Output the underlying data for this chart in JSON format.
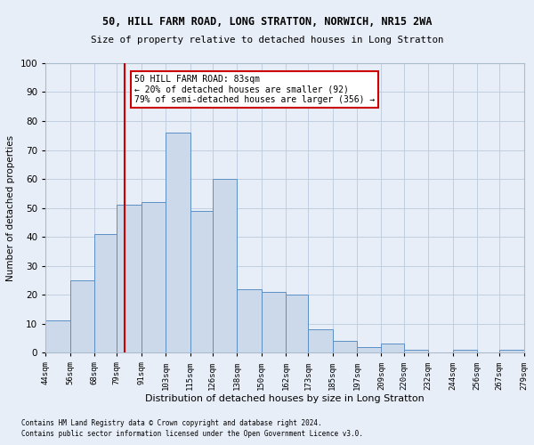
{
  "title_line1": "50, HILL FARM ROAD, LONG STRATTON, NORWICH, NR15 2WA",
  "title_line2": "Size of property relative to detached houses in Long Stratton",
  "xlabel": "Distribution of detached houses by size in Long Stratton",
  "ylabel": "Number of detached properties",
  "bar_color": "#ccd9ea",
  "bar_edge_color": "#5b8fc4",
  "grid_color": "#c0cfe0",
  "annotation_text": "50 HILL FARM ROAD: 83sqm\n← 20% of detached houses are smaller (92)\n79% of semi-detached houses are larger (356) →",
  "annotation_box_color": "#ffffff",
  "annotation_edge_color": "#cc0000",
  "vline_color": "#cc0000",
  "vline_x": 83,
  "bins": [
    44,
    56,
    68,
    79,
    91,
    103,
    115,
    126,
    138,
    150,
    162,
    173,
    185,
    197,
    209,
    220,
    232,
    244,
    256,
    267,
    279
  ],
  "bar_heights": [
    11,
    25,
    41,
    51,
    52,
    76,
    49,
    60,
    22,
    21,
    20,
    8,
    4,
    2,
    3,
    1,
    0,
    1,
    0,
    1
  ],
  "tick_labels": [
    "44sqm",
    "56sqm",
    "68sqm",
    "79sqm",
    "91sqm",
    "103sqm",
    "115sqm",
    "126sqm",
    "138sqm",
    "150sqm",
    "162sqm",
    "173sqm",
    "185sqm",
    "197sqm",
    "209sqm",
    "220sqm",
    "232sqm",
    "244sqm",
    "256sqm",
    "267sqm",
    "279sqm"
  ],
  "ylim": [
    0,
    100
  ],
  "yticks": [
    0,
    10,
    20,
    30,
    40,
    50,
    60,
    70,
    80,
    90,
    100
  ],
  "footnote1": "Contains HM Land Registry data © Crown copyright and database right 2024.",
  "footnote2": "Contains public sector information licensed under the Open Government Licence v3.0.",
  "bg_color": "#e8eef8"
}
